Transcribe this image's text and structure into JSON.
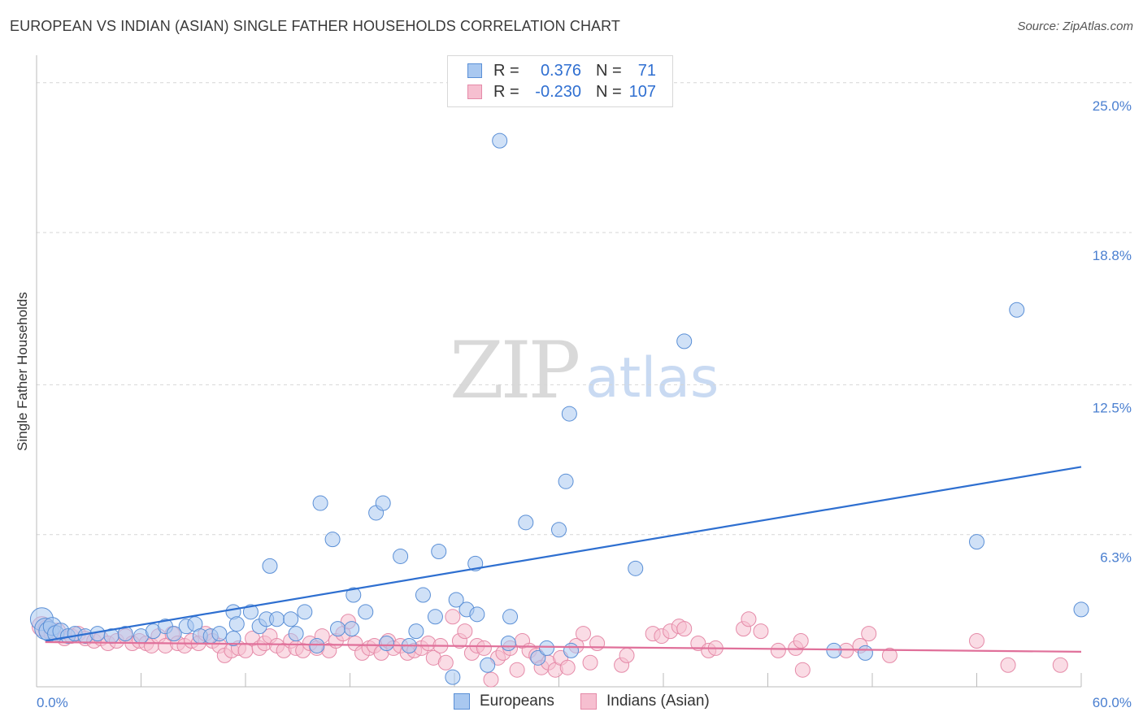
{
  "title": "EUROPEAN VS INDIAN (ASIAN) SINGLE FATHER HOUSEHOLDS CORRELATION CHART",
  "source": "Source: ZipAtlas.com",
  "watermark": {
    "zip": "ZIP",
    "atlas": "atlas"
  },
  "legend": {
    "rows": [
      {
        "r_label": "R =",
        "r_value": "0.376",
        "n_label": "N =",
        "n_value": "71"
      },
      {
        "r_label": "R =",
        "r_value": "-0.230",
        "n_label": "N =",
        "n_value": "107"
      }
    ]
  },
  "bottom_legend": {
    "europeans": "Europeans",
    "indians": "Indians (Asian)"
  },
  "colors": {
    "blue_fill": "#a9c8f0",
    "blue_stroke": "#5a8fd6",
    "blue_line": "#2e6fd0",
    "pink_fill": "#f6bfd0",
    "pink_stroke": "#e58aa8",
    "pink_line": "#e0709a",
    "grid": "#d6d6d6",
    "tick_text": "#4a7fd0"
  },
  "chart_data": {
    "type": "scatter",
    "title": "EUROPEAN VS INDIAN (ASIAN) SINGLE FATHER HOUSEHOLDS CORRELATION CHART",
    "xlabel": "",
    "ylabel": "Single Father Households",
    "xlim": [
      0,
      60
    ],
    "ylim": [
      0,
      25.8
    ],
    "x_tick_labels": [
      "0.0%",
      "60.0%"
    ],
    "y_ticks": [
      6.3,
      12.5,
      18.8,
      25.0
    ],
    "y_tick_labels": [
      "6.3%",
      "12.5%",
      "18.8%",
      "25.0%"
    ],
    "series": [
      {
        "name": "Europeans",
        "R": 0.376,
        "N": 71,
        "trend": [
          [
            0.5,
            1.9
          ],
          [
            60,
            9.1
          ]
        ],
        "points": [
          [
            0.3,
            2.8,
            14
          ],
          [
            0.5,
            2.4,
            13
          ],
          [
            0.7,
            2.3,
            12
          ],
          [
            0.9,
            2.5,
            11
          ],
          [
            1.1,
            2.2,
            10
          ],
          [
            1.4,
            2.3,
            10
          ],
          [
            1.8,
            2.1,
            9
          ],
          [
            2.2,
            2.2,
            9
          ],
          [
            2.8,
            2.1,
            9
          ],
          [
            3.5,
            2.2,
            9
          ],
          [
            4.3,
            2.1,
            9
          ],
          [
            5.1,
            2.2,
            9
          ],
          [
            6.0,
            2.1,
            9
          ],
          [
            6.7,
            2.3,
            9
          ],
          [
            7.4,
            2.5,
            9
          ],
          [
            7.9,
            2.2,
            9
          ],
          [
            8.6,
            2.5,
            9
          ],
          [
            9.1,
            2.6,
            9
          ],
          [
            9.4,
            2.1,
            9
          ],
          [
            10.0,
            2.1,
            9
          ],
          [
            10.5,
            2.2,
            9
          ],
          [
            11.3,
            2.0,
            9
          ],
          [
            11.3,
            3.1,
            9
          ],
          [
            11.5,
            2.6,
            9
          ],
          [
            12.3,
            3.1,
            9
          ],
          [
            12.8,
            2.5,
            9
          ],
          [
            13.2,
            2.8,
            9
          ],
          [
            13.4,
            5.0,
            9
          ],
          [
            13.8,
            2.8,
            9
          ],
          [
            14.6,
            2.8,
            9
          ],
          [
            14.9,
            2.2,
            9
          ],
          [
            15.4,
            3.1,
            9
          ],
          [
            16.1,
            1.7,
            9
          ],
          [
            16.3,
            7.6,
            9
          ],
          [
            17.0,
            6.1,
            9
          ],
          [
            17.3,
            2.4,
            9
          ],
          [
            18.1,
            2.4,
            9
          ],
          [
            18.2,
            3.8,
            9
          ],
          [
            18.9,
            3.1,
            9
          ],
          [
            19.5,
            7.2,
            9
          ],
          [
            19.9,
            7.6,
            9
          ],
          [
            20.1,
            1.8,
            9
          ],
          [
            20.9,
            5.4,
            9
          ],
          [
            21.4,
            1.7,
            9
          ],
          [
            21.8,
            2.3,
            9
          ],
          [
            22.2,
            3.8,
            9
          ],
          [
            22.9,
            2.9,
            9
          ],
          [
            23.1,
            5.6,
            9
          ],
          [
            23.9,
            0.4,
            9
          ],
          [
            24.1,
            3.6,
            9
          ],
          [
            24.7,
            3.2,
            9
          ],
          [
            25.2,
            5.1,
            9
          ],
          [
            25.3,
            3.0,
            9
          ],
          [
            25.9,
            0.9,
            9
          ],
          [
            26.6,
            22.6,
            9
          ],
          [
            27.1,
            1.8,
            9
          ],
          [
            27.2,
            2.9,
            9
          ],
          [
            28.1,
            6.8,
            9
          ],
          [
            28.8,
            1.2,
            9
          ],
          [
            29.3,
            1.6,
            9
          ],
          [
            30.0,
            6.5,
            9
          ],
          [
            30.4,
            8.5,
            9
          ],
          [
            30.6,
            11.3,
            9
          ],
          [
            30.7,
            1.5,
            9
          ],
          [
            34.4,
            4.9,
            9
          ],
          [
            37.2,
            14.3,
            9
          ],
          [
            45.8,
            1.5,
            9
          ],
          [
            47.6,
            1.4,
            9
          ],
          [
            54.0,
            6.0,
            9
          ],
          [
            56.3,
            15.6,
            9
          ],
          [
            60.0,
            3.2,
            9
          ]
        ]
      },
      {
        "name": "Indians (Asian)",
        "R": -0.23,
        "N": 107,
        "trend": [
          [
            0.5,
            1.85
          ],
          [
            60,
            1.45
          ]
        ],
        "points": [
          [
            0.3,
            2.5,
            12
          ],
          [
            0.6,
            2.4,
            11
          ],
          [
            0.9,
            2.2,
            10
          ],
          [
            1.2,
            2.3,
            10
          ],
          [
            1.6,
            2.0,
            9
          ],
          [
            2.0,
            2.1,
            9
          ],
          [
            2.4,
            2.2,
            9
          ],
          [
            2.8,
            2.0,
            9
          ],
          [
            3.3,
            1.9,
            9
          ],
          [
            3.7,
            2.0,
            9
          ],
          [
            4.1,
            1.8,
            9
          ],
          [
            4.6,
            1.9,
            9
          ],
          [
            5.1,
            2.1,
            9
          ],
          [
            5.5,
            1.8,
            9
          ],
          [
            5.9,
            1.9,
            9
          ],
          [
            6.3,
            1.8,
            9
          ],
          [
            6.6,
            1.7,
            9
          ],
          [
            7.0,
            2.1,
            9
          ],
          [
            7.4,
            1.7,
            9
          ],
          [
            7.8,
            2.2,
            9
          ],
          [
            8.1,
            1.8,
            9
          ],
          [
            8.5,
            1.7,
            9
          ],
          [
            8.9,
            1.9,
            9
          ],
          [
            9.3,
            1.8,
            9
          ],
          [
            9.7,
            2.2,
            9
          ],
          [
            10.1,
            1.9,
            9
          ],
          [
            10.5,
            1.7,
            9
          ],
          [
            10.8,
            1.3,
            9
          ],
          [
            11.2,
            1.5,
            9
          ],
          [
            11.6,
            1.6,
            9
          ],
          [
            12.0,
            1.5,
            9
          ],
          [
            12.4,
            2.0,
            9
          ],
          [
            12.8,
            1.6,
            9
          ],
          [
            13.1,
            1.8,
            9
          ],
          [
            13.4,
            2.1,
            9
          ],
          [
            13.8,
            1.7,
            9
          ],
          [
            14.2,
            1.5,
            9
          ],
          [
            14.6,
            1.9,
            9
          ],
          [
            14.9,
            1.6,
            9
          ],
          [
            15.3,
            1.5,
            9
          ],
          [
            15.7,
            1.8,
            9
          ],
          [
            16.1,
            1.6,
            9
          ],
          [
            16.4,
            2.1,
            9
          ],
          [
            16.8,
            1.5,
            9
          ],
          [
            17.2,
            1.9,
            9
          ],
          [
            17.6,
            2.2,
            9
          ],
          [
            17.9,
            2.7,
            9
          ],
          [
            18.3,
            1.8,
            9
          ],
          [
            18.7,
            1.4,
            9
          ],
          [
            19.1,
            1.6,
            9
          ],
          [
            19.4,
            1.7,
            9
          ],
          [
            19.8,
            1.4,
            9
          ],
          [
            20.2,
            1.9,
            9
          ],
          [
            20.5,
            1.6,
            9
          ],
          [
            20.9,
            1.7,
            9
          ],
          [
            21.3,
            1.4,
            9
          ],
          [
            21.7,
            1.5,
            9
          ],
          [
            22.1,
            1.6,
            9
          ],
          [
            22.5,
            1.8,
            9
          ],
          [
            22.8,
            1.2,
            9
          ],
          [
            23.2,
            1.7,
            9
          ],
          [
            23.5,
            1.0,
            9
          ],
          [
            23.9,
            2.9,
            9
          ],
          [
            24.3,
            1.9,
            9
          ],
          [
            24.6,
            2.3,
            9
          ],
          [
            25.0,
            1.4,
            9
          ],
          [
            25.3,
            1.7,
            9
          ],
          [
            25.7,
            1.6,
            9
          ],
          [
            26.1,
            0.3,
            9
          ],
          [
            26.5,
            1.2,
            9
          ],
          [
            26.8,
            1.4,
            9
          ],
          [
            27.2,
            1.6,
            9
          ],
          [
            27.6,
            0.7,
            9
          ],
          [
            27.9,
            1.9,
            9
          ],
          [
            28.3,
            1.5,
            9
          ],
          [
            28.7,
            1.3,
            9
          ],
          [
            29.0,
            0.8,
            9
          ],
          [
            29.4,
            1.0,
            9
          ],
          [
            29.8,
            0.7,
            9
          ],
          [
            30.1,
            1.2,
            9
          ],
          [
            30.5,
            0.8,
            9
          ],
          [
            31.0,
            1.7,
            9
          ],
          [
            31.4,
            2.2,
            9
          ],
          [
            31.8,
            1.0,
            9
          ],
          [
            32.2,
            1.8,
            9
          ],
          [
            33.6,
            0.9,
            9
          ],
          [
            33.9,
            1.3,
            9
          ],
          [
            35.4,
            2.2,
            9
          ],
          [
            35.9,
            2.1,
            9
          ],
          [
            36.4,
            2.3,
            9
          ],
          [
            36.9,
            2.5,
            9
          ],
          [
            37.2,
            2.4,
            9
          ],
          [
            38.0,
            1.8,
            9
          ],
          [
            38.6,
            1.5,
            9
          ],
          [
            39.0,
            1.6,
            9
          ],
          [
            40.6,
            2.4,
            9
          ],
          [
            40.9,
            2.8,
            9
          ],
          [
            41.6,
            2.3,
            9
          ],
          [
            42.6,
            1.5,
            9
          ],
          [
            43.6,
            1.6,
            9
          ],
          [
            43.9,
            1.9,
            9
          ],
          [
            44.0,
            0.7,
            9
          ],
          [
            46.5,
            1.5,
            9
          ],
          [
            47.3,
            1.7,
            9
          ],
          [
            47.8,
            2.2,
            9
          ],
          [
            49.0,
            1.3,
            9
          ],
          [
            54.0,
            1.9,
            9
          ],
          [
            55.8,
            0.9,
            9
          ],
          [
            58.8,
            0.9,
            9
          ]
        ]
      }
    ]
  }
}
